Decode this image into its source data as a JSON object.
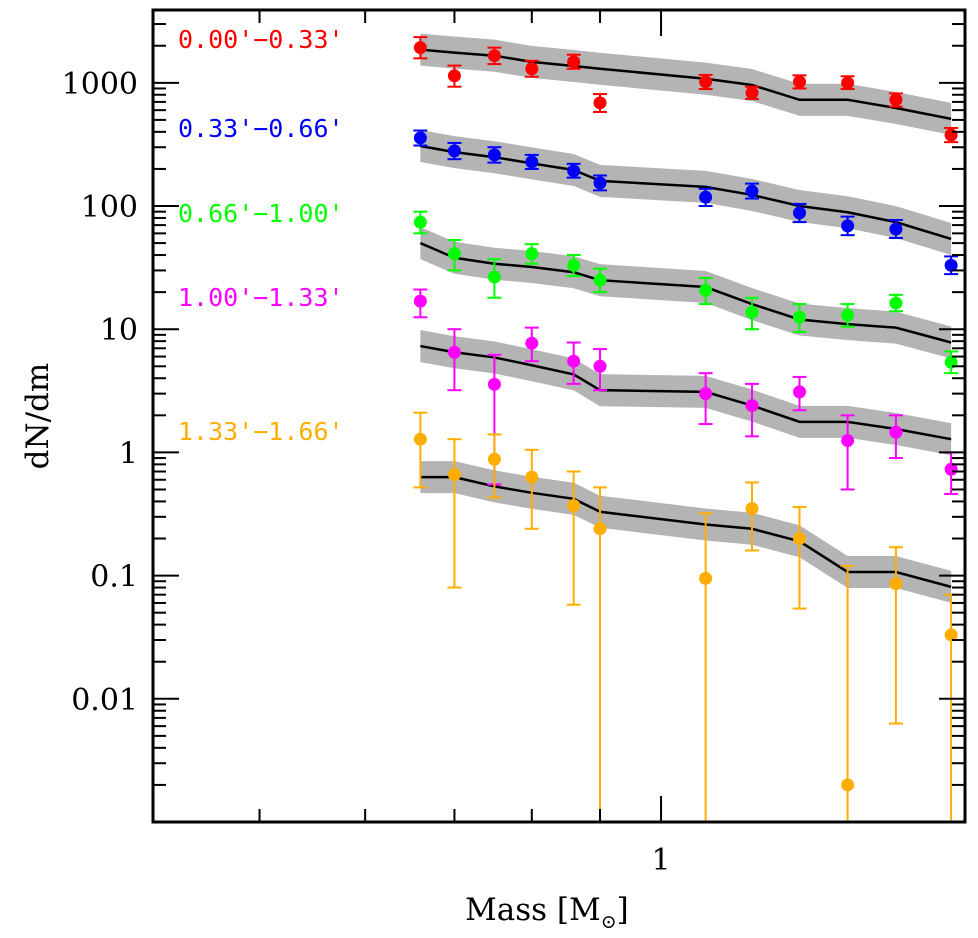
{
  "chart_data": {
    "type": "scatter",
    "title": "",
    "xlabel": "Mass [M⊙]",
    "xlabel_main": "Mass [M",
    "xlabel_sub": "⊙",
    "xlabel_close": "]",
    "ylabel": "dN/dm",
    "xscale": "log",
    "yscale": "log",
    "xlim": [
      0.416,
      1.69
    ],
    "ylim": [
      0.001,
      3900
    ],
    "grid": false,
    "x_major_ticks": [
      {
        "value": 1,
        "label": "1"
      }
    ],
    "x_minor_ticks": [
      0.5,
      0.6,
      0.7,
      0.8,
      0.9
    ],
    "y_major_ticks": [
      {
        "value": 0.01,
        "label": "0.01"
      },
      {
        "value": 0.1,
        "label": "0.1"
      },
      {
        "value": 1,
        "label": "1"
      },
      {
        "value": 10,
        "label": "10"
      },
      {
        "value": 100,
        "label": "100"
      },
      {
        "value": 1000,
        "label": "1000"
      }
    ],
    "legend_placement": "left-inside, labels stacked next to each series",
    "model_band_color": "#b4b4b4",
    "model_line_color": "#000000",
    "x": [
      0.66,
      0.7,
      0.75,
      0.8,
      0.86,
      0.9,
      1.08,
      1.17,
      1.27,
      1.38,
      1.5,
      1.65
    ],
    "series": [
      {
        "name": "0.00'−0.33'",
        "color": "#ff0000",
        "values": [
          1930,
          1140,
          1660,
          1300,
          1480,
          688,
          1020,
          830,
          1020,
          1000,
          728,
          377
        ],
        "err_low": [
          1580,
          930,
          1420,
          1120,
          1300,
          580,
          890,
          740,
          900,
          890,
          640,
          330
        ],
        "err_high": [
          2350,
          1380,
          1930,
          1510,
          1690,
          810,
          1160,
          930,
          1150,
          1130,
          820,
          430
        ],
        "model": [
          1860,
          1760,
          1660,
          1480,
          1370,
          1300,
          1080,
          960,
          728,
          728,
          625,
          510
        ],
        "model_band": 0.13
      },
      {
        "name": "0.33'−0.66'",
        "color": "#0000ff",
        "values": [
          357,
          280,
          260,
          228,
          193,
          154,
          118,
          132,
          88,
          69,
          65,
          33
        ],
        "err_low": [
          310,
          240,
          225,
          200,
          170,
          134,
          100,
          115,
          74,
          58,
          55,
          28
        ],
        "err_high": [
          410,
          325,
          300,
          260,
          220,
          177,
          138,
          152,
          104,
          82,
          77,
          39
        ],
        "model": [
          307,
          274,
          249,
          222,
          196,
          160,
          143,
          123,
          100,
          89,
          74,
          54
        ],
        "model_band": 0.13
      },
      {
        "name": "0.66'−1.00'",
        "color": "#00ff00",
        "values": [
          74,
          41,
          26.5,
          41,
          33,
          25,
          20.7,
          13.7,
          12.5,
          13,
          16.3,
          5.4
        ],
        "err_low": [
          60,
          30,
          18,
          34,
          27,
          20,
          16,
          10,
          9.5,
          10.5,
          14,
          4.4
        ],
        "err_high": [
          90,
          53,
          37,
          49,
          40,
          31,
          26,
          18,
          16,
          16,
          19,
          6.6
        ],
        "model": [
          50,
          38,
          34,
          32,
          29,
          25,
          22,
          16,
          12,
          11,
          10.3,
          7.8
        ],
        "model_band": 0.13
      },
      {
        "name": "1.00'−1.33'",
        "color": "#ff00ff",
        "values": [
          16.9,
          6.5,
          3.57,
          7.7,
          5.5,
          5.0,
          3.0,
          2.4,
          3.1,
          1.25,
          1.46,
          0.73
        ],
        "err_low": [
          12.5,
          3.2,
          0.55,
          5.5,
          3.6,
          3.2,
          1.7,
          1.35,
          2.2,
          0.5,
          0.9,
          0.46
        ],
        "err_high": [
          21,
          10,
          6.2,
          10.3,
          7.8,
          6.9,
          4.4,
          3.6,
          4.1,
          2.0,
          2.0,
          1.0
        ],
        "model": [
          7.3,
          6.5,
          5.9,
          5.1,
          4.3,
          3.2,
          3.1,
          2.4,
          1.77,
          1.77,
          1.55,
          1.28
        ],
        "model_band": 0.13
      },
      {
        "name": "1.33'−1.66'",
        "color": "#ffae00",
        "values": [
          1.28,
          0.66,
          0.88,
          0.63,
          0.37,
          0.24,
          0.095,
          0.35,
          0.2,
          0.002,
          0.086,
          0.033
        ],
        "err_low": [
          0.52,
          0.08,
          0.43,
          0.24,
          0.058,
          0.001,
          0.001,
          0.16,
          0.054,
          0.001,
          0.0063,
          0.001
        ],
        "err_high": [
          2.1,
          1.28,
          1.4,
          1.05,
          0.7,
          0.52,
          0.32,
          0.57,
          0.36,
          0.12,
          0.17,
          0.07
        ],
        "model": [
          0.63,
          0.63,
          0.53,
          0.47,
          0.42,
          0.33,
          0.26,
          0.24,
          0.19,
          0.107,
          0.107,
          0.081
        ],
        "model_band": 0.13
      }
    ],
    "legend": [
      {
        "label": "0.00'−0.33'",
        "color": "#ff0000"
      },
      {
        "label": "0.33'−0.66'",
        "color": "#0000ff"
      },
      {
        "label": "0.66'−1.00'",
        "color": "#00ff00"
      },
      {
        "label": "1.00'−1.33'",
        "color": "#ff00ff"
      },
      {
        "label": "1.33'−1.66'",
        "color": "#ffae00"
      }
    ]
  }
}
